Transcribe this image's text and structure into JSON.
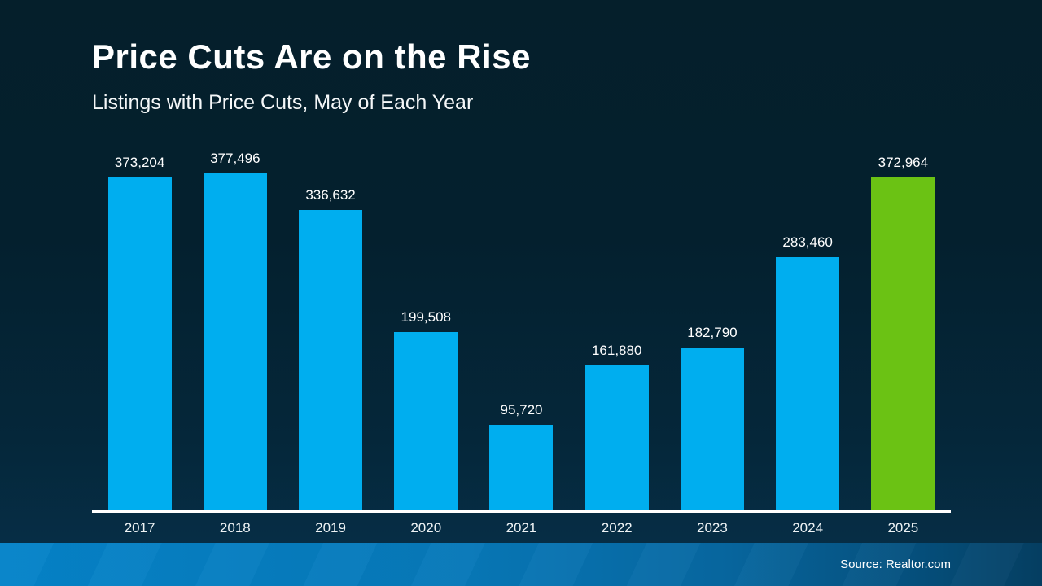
{
  "header": {
    "title": "Price Cuts Are on the Rise",
    "subtitle": "Listings with Price Cuts, May of Each Year"
  },
  "footer": {
    "source_label": "Source: Realtor.com"
  },
  "colors": {
    "bar_blue": "#00AEEF",
    "bar_green": "#6BC214",
    "background_top": "#051F2B",
    "background_bottom": "#06304A",
    "footer_gradient_left": "#0583C9",
    "footer_gradient_right": "#053F63",
    "axis_line": "#FFFFFF",
    "label_text": "#FFFFFF"
  },
  "chart_data": {
    "type": "bar",
    "title": "Price Cuts Are on the Rise",
    "subtitle": "Listings with Price Cuts, May of Each Year",
    "categories": [
      "2017",
      "2018",
      "2019",
      "2020",
      "2021",
      "2022",
      "2023",
      "2024",
      "2025"
    ],
    "values": [
      373204,
      377496,
      336632,
      199508,
      95720,
      161880,
      182790,
      283460,
      372964
    ],
    "value_labels": [
      "373,204",
      "377,496",
      "336,632",
      "199,508",
      "95,720",
      "161,880",
      "182,790",
      "283,460",
      "372,964"
    ],
    "highlight_index": 8,
    "highlight_color": "#6BC214",
    "bar_color": "#00AEEF",
    "xlabel": "",
    "ylabel": "",
    "ylim": [
      0,
      377496
    ],
    "grid": false,
    "legend": false,
    "data_labels_position": "above-bars"
  }
}
